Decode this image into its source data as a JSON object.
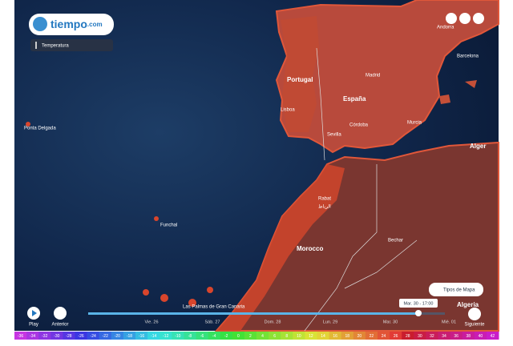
{
  "header": {
    "logo_name": "tiempo",
    "logo_suffix": ".com",
    "layer": "Temperatura"
  },
  "map": {
    "places": [
      "Ponta Delgada",
      "Funchal",
      "Las Palmas de Gran Canaria",
      "Portugal",
      "Lisboa",
      "Madrid",
      "España",
      "Córdoba",
      "Sevilla",
      "Murcia",
      "Barcelona",
      "Andorra",
      "Alger",
      "Rabat",
      "الرباط",
      "Morocco",
      "Bechar",
      "Algeria"
    ]
  },
  "controls": {
    "map_types": "Tipos de Mapa",
    "play": "Play",
    "previous": "Anterior",
    "next": "Siguiente"
  },
  "timeline": {
    "days": [
      "Vie. 26",
      "Sáb. 27",
      "Dom. 28",
      "Lun. 29",
      "Mar. 30",
      "Mié. 01"
    ],
    "current": "Mar. 30 - 17:00"
  },
  "legend": {
    "ticks": [
      -36,
      -34,
      -32,
      -30,
      -28,
      -26,
      -24,
      -22,
      -20,
      -18,
      -16,
      -14,
      -12,
      -10,
      -8,
      -6,
      -4,
      -2,
      0,
      2,
      4,
      6,
      8,
      10,
      12,
      14,
      16,
      18,
      20,
      22,
      24,
      26,
      28,
      30,
      32,
      34,
      36,
      38,
      40,
      42
    ]
  }
}
